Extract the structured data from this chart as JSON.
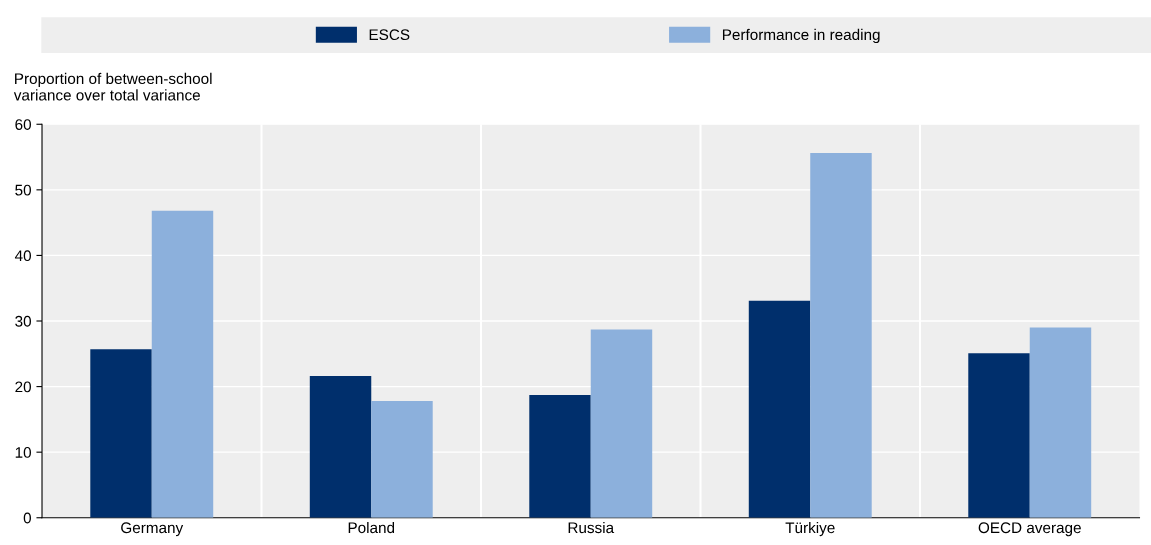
{
  "chart_data": {
    "type": "bar",
    "ylabel": "Proportion of between-school\nvariance over total variance",
    "categories": [
      "Germany",
      "Poland",
      "Russia",
      "Türkiye",
      "OECD average"
    ],
    "series": [
      {
        "name": "ESCS",
        "color": "#002f6c",
        "values": [
          25.7,
          21.6,
          18.7,
          33.1,
          25.1
        ]
      },
      {
        "name": "Performance in reading",
        "color": "#8cb0dc",
        "values": [
          46.8,
          17.8,
          28.7,
          55.6,
          29.0
        ]
      }
    ],
    "ylim": [
      0,
      60
    ],
    "yticks": [
      0,
      10,
      20,
      30,
      40,
      50,
      60
    ],
    "grid": true,
    "legend": "top"
  }
}
